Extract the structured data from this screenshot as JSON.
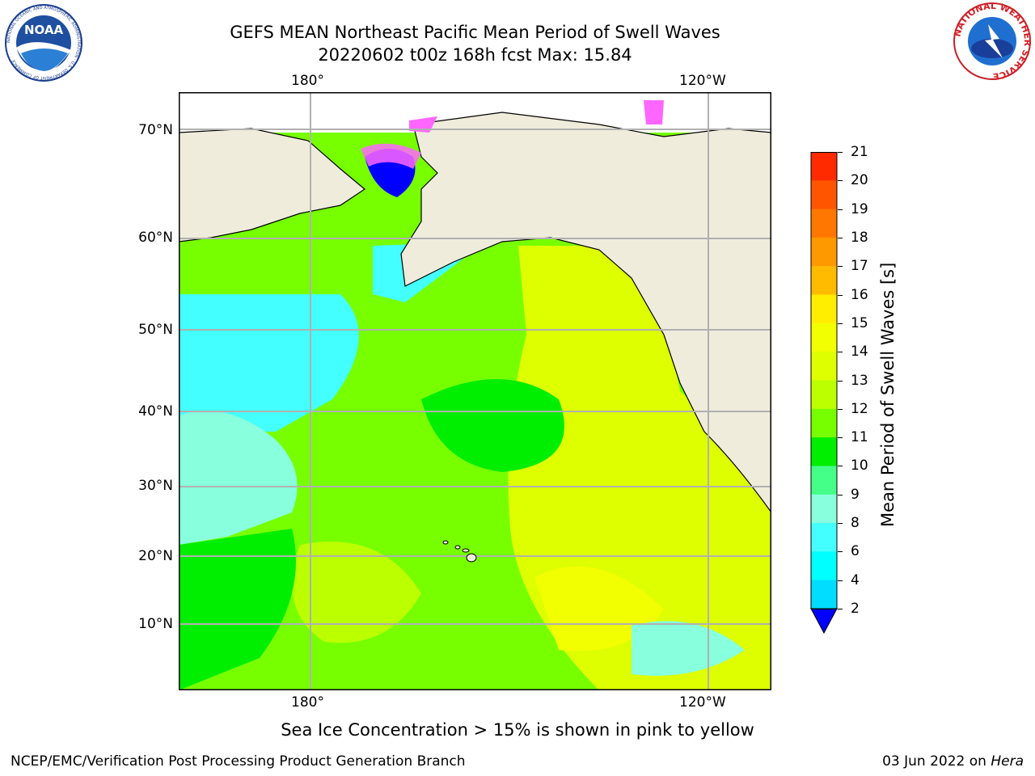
{
  "title": {
    "line1": "GEFS MEAN Northeast Pacific Mean Period of Swell Waves",
    "line2": "20220602 t00z 168h fcst   Max: 15.84"
  },
  "logos": {
    "left": "NOAA",
    "left_ring": "NATIONAL OCEANIC AND ATMOSPHERIC ADMINISTRATION · U.S. DEPARTMENT OF COMMERCE",
    "right_ring": "NATIONAL WEATHER SERVICE"
  },
  "map": {
    "lon_labels_top": [
      "180°",
      "120°W"
    ],
    "lon_labels_bottom": [
      "180°",
      "120°W"
    ],
    "lat_labels": [
      "70°N",
      "60°N",
      "50°N",
      "40°N",
      "30°N",
      "20°N",
      "10°N"
    ],
    "land_color": "#efecdc",
    "grid_color": "#b0b0b0"
  },
  "colorbar": {
    "label": "Mean Period of Swell Waves [s]",
    "ticks": [
      "21",
      "20",
      "19",
      "18",
      "17",
      "16",
      "15",
      "14",
      "13",
      "12",
      "11",
      "10",
      "9",
      "8",
      "6",
      "4",
      "2"
    ],
    "colors": [
      "#ff0000",
      "#ff2a00",
      "#ff5500",
      "#ff7700",
      "#ff9900",
      "#ffbb00",
      "#ffee00",
      "#f2ff00",
      "#ddff00",
      "#bbff00",
      "#77ff00",
      "#00ee00",
      "#44ff88",
      "#88ffdd",
      "#44ffff",
      "#00ffff",
      "#00ddff",
      "#0077ff"
    ],
    "under_color": "#0000ff"
  },
  "caption": "Sea Ice Concentration > 15% is shown in pink to yellow",
  "footer": {
    "left": "NCEP/EMC/Verification Post Processing Product Generation Branch",
    "right_date": "03 Jun 2022 on ",
    "right_host": "Hera"
  }
}
